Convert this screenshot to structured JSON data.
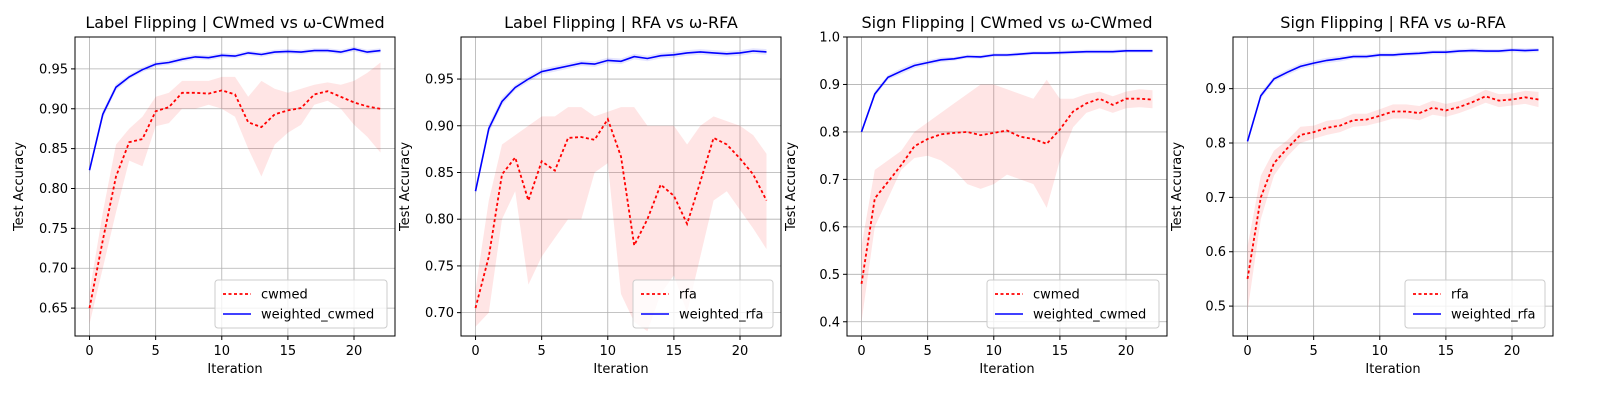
{
  "chart_data": [
    {
      "type": "line",
      "title": "Label Flipping | CWmed vs ω-CWmed",
      "xlabel": "Iteration",
      "ylabel": "Test Accuracy",
      "xlim": [
        -1.1,
        23.1
      ],
      "ylim": [
        0.615,
        0.99
      ],
      "xticks": [
        0,
        5,
        10,
        15,
        20
      ],
      "yticks": [
        0.65,
        0.7,
        0.75,
        0.8,
        0.85,
        0.9,
        0.95
      ],
      "grid": true,
      "legend": "lower-right",
      "x": [
        0,
        1,
        2,
        3,
        4,
        5,
        6,
        7,
        8,
        9,
        10,
        11,
        12,
        13,
        14,
        15,
        16,
        17,
        18,
        19,
        20,
        21,
        22
      ],
      "series": [
        {
          "name": "cwmed",
          "color": "#ff0000",
          "style": "dotted",
          "values": [
            0.65,
            0.735,
            0.815,
            0.858,
            0.862,
            0.897,
            0.902,
            0.92,
            0.92,
            0.919,
            0.923,
            0.918,
            0.883,
            0.877,
            0.893,
            0.898,
            0.901,
            0.918,
            0.922,
            0.915,
            0.908,
            0.903,
            0.9
          ],
          "lower": [
            0.63,
            0.7,
            0.77,
            0.835,
            0.828,
            0.878,
            0.882,
            0.9,
            0.9,
            0.905,
            0.9,
            0.89,
            0.85,
            0.815,
            0.855,
            0.87,
            0.88,
            0.905,
            0.91,
            0.9,
            0.88,
            0.865,
            0.845
          ],
          "upper": [
            0.67,
            0.77,
            0.855,
            0.875,
            0.89,
            0.915,
            0.92,
            0.935,
            0.935,
            0.935,
            0.94,
            0.94,
            0.915,
            0.935,
            0.925,
            0.92,
            0.925,
            0.93,
            0.933,
            0.93,
            0.935,
            0.945,
            0.958
          ]
        },
        {
          "name": "weighted_cwmed",
          "color": "#0000ff",
          "style": "solid",
          "values": [
            0.823,
            0.893,
            0.927,
            0.94,
            0.949,
            0.956,
            0.958,
            0.962,
            0.965,
            0.964,
            0.967,
            0.966,
            0.97,
            0.968,
            0.971,
            0.972,
            0.971,
            0.973,
            0.973,
            0.971,
            0.975,
            0.971,
            0.973
          ],
          "lower": [
            0.818,
            0.888,
            0.923,
            0.937,
            0.946,
            0.953,
            0.955,
            0.959,
            0.962,
            0.961,
            0.964,
            0.963,
            0.967,
            0.965,
            0.968,
            0.969,
            0.968,
            0.97,
            0.97,
            0.968,
            0.972,
            0.968,
            0.97
          ],
          "upper": [
            0.828,
            0.898,
            0.931,
            0.943,
            0.952,
            0.959,
            0.961,
            0.965,
            0.968,
            0.967,
            0.97,
            0.969,
            0.973,
            0.971,
            0.974,
            0.975,
            0.974,
            0.976,
            0.976,
            0.974,
            0.978,
            0.974,
            0.976
          ]
        }
      ]
    },
    {
      "type": "line",
      "title": "Label Flipping | RFA vs ω-RFA",
      "xlabel": "Iteration",
      "ylabel": "Test Accuracy",
      "xlim": [
        -1.1,
        23.1
      ],
      "ylim": [
        0.675,
        0.995
      ],
      "xticks": [
        0,
        5,
        10,
        15,
        20
      ],
      "yticks": [
        0.7,
        0.75,
        0.8,
        0.85,
        0.9,
        0.95
      ],
      "grid": true,
      "legend": "lower-right",
      "x": [
        0,
        1,
        2,
        3,
        4,
        5,
        6,
        7,
        8,
        9,
        10,
        11,
        12,
        13,
        14,
        15,
        16,
        17,
        18,
        19,
        20,
        21,
        22
      ],
      "series": [
        {
          "name": "rfa",
          "color": "#ff0000",
          "style": "dotted",
          "values": [
            0.705,
            0.76,
            0.848,
            0.866,
            0.82,
            0.862,
            0.852,
            0.887,
            0.888,
            0.885,
            0.907,
            0.867,
            0.772,
            0.8,
            0.837,
            0.825,
            0.795,
            0.84,
            0.887,
            0.88,
            0.865,
            0.848,
            0.82
          ],
          "lower": [
            0.685,
            0.7,
            0.8,
            0.83,
            0.73,
            0.76,
            0.78,
            0.8,
            0.8,
            0.85,
            0.86,
            0.72,
            0.69,
            0.68,
            0.72,
            0.74,
            0.7,
            0.76,
            0.82,
            0.83,
            0.81,
            0.79,
            0.768
          ],
          "upper": [
            0.725,
            0.82,
            0.88,
            0.89,
            0.9,
            0.91,
            0.91,
            0.92,
            0.92,
            0.91,
            0.915,
            0.92,
            0.92,
            0.9,
            0.9,
            0.9,
            0.88,
            0.9,
            0.91,
            0.905,
            0.9,
            0.89,
            0.87
          ]
        },
        {
          "name": "weighted_rfa",
          "color": "#0000ff",
          "style": "solid",
          "values": [
            0.83,
            0.897,
            0.926,
            0.941,
            0.95,
            0.958,
            0.961,
            0.964,
            0.967,
            0.966,
            0.97,
            0.969,
            0.974,
            0.972,
            0.975,
            0.976,
            0.978,
            0.979,
            0.978,
            0.977,
            0.978,
            0.98,
            0.979
          ],
          "lower": [
            0.825,
            0.892,
            0.922,
            0.938,
            0.947,
            0.955,
            0.958,
            0.961,
            0.964,
            0.963,
            0.967,
            0.966,
            0.971,
            0.969,
            0.972,
            0.973,
            0.975,
            0.976,
            0.975,
            0.974,
            0.975,
            0.977,
            0.976
          ],
          "upper": [
            0.835,
            0.902,
            0.93,
            0.944,
            0.953,
            0.961,
            0.964,
            0.967,
            0.97,
            0.969,
            0.973,
            0.972,
            0.977,
            0.975,
            0.978,
            0.979,
            0.981,
            0.982,
            0.981,
            0.98,
            0.981,
            0.983,
            0.982
          ]
        }
      ]
    },
    {
      "type": "line",
      "title": "Sign Flipping | CWmed vs ω-CWmed",
      "xlabel": "Iteration",
      "ylabel": "Test Accuracy",
      "xlim": [
        -1.1,
        23.1
      ],
      "ylim": [
        0.37,
        1.0
      ],
      "xticks": [
        0,
        5,
        10,
        15,
        20
      ],
      "yticks": [
        0.4,
        0.5,
        0.6,
        0.7,
        0.8,
        0.9,
        1.0
      ],
      "grid": true,
      "legend": "lower-right",
      "x": [
        0,
        1,
        2,
        3,
        4,
        5,
        6,
        7,
        8,
        9,
        10,
        11,
        12,
        13,
        14,
        15,
        16,
        17,
        18,
        19,
        20,
        21,
        22
      ],
      "series": [
        {
          "name": "cwmed",
          "color": "#ff0000",
          "style": "dotted",
          "values": [
            0.48,
            0.66,
            0.695,
            0.73,
            0.77,
            0.785,
            0.795,
            0.798,
            0.8,
            0.793,
            0.798,
            0.803,
            0.79,
            0.785,
            0.775,
            0.805,
            0.843,
            0.86,
            0.87,
            0.857,
            0.87,
            0.87,
            0.868
          ],
          "lower": [
            0.4,
            0.6,
            0.66,
            0.72,
            0.745,
            0.75,
            0.74,
            0.72,
            0.69,
            0.68,
            0.69,
            0.71,
            0.7,
            0.69,
            0.64,
            0.74,
            0.81,
            0.84,
            0.85,
            0.84,
            0.85,
            0.852,
            0.85
          ],
          "upper": [
            0.56,
            0.72,
            0.74,
            0.76,
            0.8,
            0.82,
            0.84,
            0.86,
            0.88,
            0.9,
            0.9,
            0.89,
            0.88,
            0.87,
            0.91,
            0.87,
            0.87,
            0.88,
            0.885,
            0.875,
            0.885,
            0.89,
            0.888
          ]
        },
        {
          "name": "weighted_cwmed",
          "color": "#0000ff",
          "style": "solid",
          "values": [
            0.8,
            0.88,
            0.915,
            0.928,
            0.94,
            0.946,
            0.952,
            0.954,
            0.959,
            0.958,
            0.962,
            0.962,
            0.964,
            0.966,
            0.966,
            0.967,
            0.968,
            0.969,
            0.969,
            0.969,
            0.971,
            0.971,
            0.971
          ],
          "lower": [
            0.795,
            0.874,
            0.91,
            0.922,
            0.934,
            0.941,
            0.947,
            0.95,
            0.955,
            0.954,
            0.958,
            0.958,
            0.96,
            0.962,
            0.962,
            0.963,
            0.964,
            0.965,
            0.965,
            0.965,
            0.967,
            0.967,
            0.967
          ],
          "upper": [
            0.805,
            0.886,
            0.92,
            0.934,
            0.946,
            0.951,
            0.957,
            0.958,
            0.963,
            0.962,
            0.966,
            0.966,
            0.968,
            0.97,
            0.97,
            0.971,
            0.972,
            0.973,
            0.973,
            0.973,
            0.975,
            0.975,
            0.975
          ]
        }
      ]
    },
    {
      "type": "line",
      "title": "Sign Flipping | RFA vs ω-RFA",
      "xlabel": "Iteration",
      "ylabel": "Test Accuracy",
      "xlim": [
        -1.1,
        23.1
      ],
      "ylim": [
        0.445,
        0.995
      ],
      "xticks": [
        0,
        5,
        10,
        15,
        20
      ],
      "yticks": [
        0.5,
        0.6,
        0.7,
        0.8,
        0.9
      ],
      "grid": true,
      "legend": "lower-right",
      "x": [
        0,
        1,
        2,
        3,
        4,
        5,
        6,
        7,
        8,
        9,
        10,
        11,
        12,
        13,
        14,
        15,
        16,
        17,
        18,
        19,
        20,
        21,
        22
      ],
      "series": [
        {
          "name": "rfa",
          "color": "#ff0000",
          "style": "dotted",
          "values": [
            0.55,
            0.7,
            0.763,
            0.79,
            0.815,
            0.82,
            0.828,
            0.832,
            0.842,
            0.843,
            0.85,
            0.858,
            0.858,
            0.855,
            0.865,
            0.86,
            0.866,
            0.875,
            0.886,
            0.878,
            0.88,
            0.884,
            0.88
          ],
          "lower": [
            0.49,
            0.66,
            0.74,
            0.775,
            0.8,
            0.808,
            0.815,
            0.82,
            0.83,
            0.832,
            0.838,
            0.845,
            0.845,
            0.842,
            0.852,
            0.848,
            0.855,
            0.864,
            0.874,
            0.866,
            0.869,
            0.872,
            0.866
          ],
          "upper": [
            0.61,
            0.74,
            0.786,
            0.805,
            0.83,
            0.832,
            0.841,
            0.844,
            0.854,
            0.854,
            0.862,
            0.871,
            0.871,
            0.868,
            0.878,
            0.872,
            0.877,
            0.886,
            0.898,
            0.89,
            0.891,
            0.896,
            0.894
          ]
        },
        {
          "name": "weighted_rfa",
          "color": "#0000ff",
          "style": "solid",
          "values": [
            0.803,
            0.887,
            0.918,
            0.93,
            0.941,
            0.947,
            0.952,
            0.955,
            0.959,
            0.959,
            0.962,
            0.962,
            0.964,
            0.965,
            0.967,
            0.967,
            0.969,
            0.97,
            0.969,
            0.969,
            0.971,
            0.97,
            0.971
          ],
          "lower": [
            0.798,
            0.881,
            0.913,
            0.925,
            0.936,
            0.942,
            0.947,
            0.95,
            0.955,
            0.955,
            0.958,
            0.958,
            0.96,
            0.961,
            0.963,
            0.963,
            0.965,
            0.966,
            0.965,
            0.965,
            0.967,
            0.966,
            0.967
          ],
          "upper": [
            0.808,
            0.893,
            0.923,
            0.935,
            0.946,
            0.952,
            0.957,
            0.96,
            0.963,
            0.963,
            0.966,
            0.966,
            0.968,
            0.969,
            0.971,
            0.971,
            0.973,
            0.974,
            0.973,
            0.973,
            0.975,
            0.974,
            0.975
          ]
        }
      ]
    }
  ]
}
